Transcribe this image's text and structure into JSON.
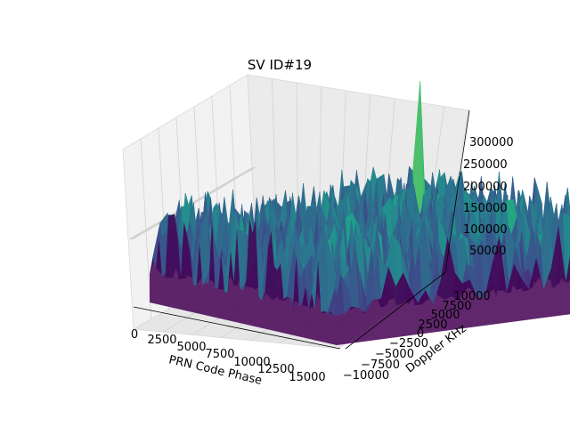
{
  "chart_data": {
    "type": "surface",
    "title": "SV ID#19",
    "xlabel": "PRN Code Phase",
    "ylabel": "Doppler KHz",
    "zlabel": "",
    "x_ticks": [
      "0",
      "2500",
      "5000",
      "7500",
      "10000",
      "12500",
      "15000"
    ],
    "y_ticks": [
      "−10000",
      "−7500",
      "−5000",
      "−2500",
      "0",
      "2500",
      "5000",
      "7500",
      "10000"
    ],
    "z_ticks": [
      "50000",
      "100000",
      "150000",
      "200000",
      "250000",
      "300000"
    ],
    "xlim": [
      0,
      16368
    ],
    "ylim": [
      -10000,
      10000
    ],
    "zlim": [
      0,
      340000
    ],
    "grid": true,
    "colormap": "viridis",
    "noise_floor_range": [
      40000,
      160000
    ],
    "peak": {
      "x": 5000,
      "y": 4500,
      "z": 300000
    }
  },
  "colors": {
    "pane": "#f2f2f2",
    "grid": "#d2d2d2",
    "peak": "#fde725",
    "low": "#440154",
    "mid": "#21918c"
  }
}
